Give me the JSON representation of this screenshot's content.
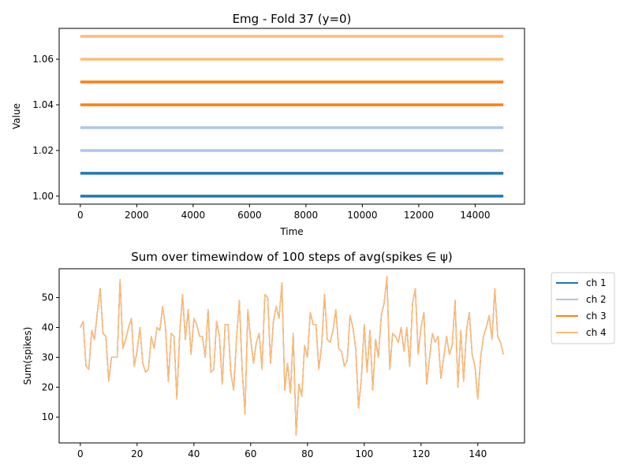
{
  "chart_data": [
    {
      "type": "line",
      "title": "Emg - Fold 37 (y=0)",
      "xlabel": "Time",
      "ylabel": "Value",
      "xlim": [
        -750,
        15750
      ],
      "ylim": [
        0.9965,
        1.0735
      ],
      "xticks": [
        0,
        2000,
        4000,
        6000,
        8000,
        10000,
        12000,
        14000
      ],
      "xtick_labels": [
        "0",
        "2000",
        "4000",
        "6000",
        "8000",
        "10000",
        "12000",
        "14000"
      ],
      "yticks": [
        1.0,
        1.02,
        1.04,
        1.06
      ],
      "ytick_labels": [
        "1.00",
        "1.02",
        "1.04",
        "1.06"
      ],
      "grid": false,
      "series": [
        {
          "x": [
            0,
            15000
          ],
          "values": [
            1.0,
            1.0
          ],
          "color": "#1f77b4"
        },
        {
          "x": [
            0,
            15000
          ],
          "values": [
            1.01,
            1.01
          ],
          "color": "#1f77b4"
        },
        {
          "x": [
            0,
            15000
          ],
          "values": [
            1.02,
            1.02
          ],
          "color": "#aec7e8"
        },
        {
          "x": [
            0,
            15000
          ],
          "values": [
            1.03,
            1.03
          ],
          "color": "#aec7e8"
        },
        {
          "x": [
            0,
            15000
          ],
          "values": [
            1.04,
            1.04
          ],
          "color": "#ff7f0e"
        },
        {
          "x": [
            0,
            15000
          ],
          "values": [
            1.05,
            1.05
          ],
          "color": "#ff7f0e"
        },
        {
          "x": [
            0,
            15000
          ],
          "values": [
            1.06,
            1.06
          ],
          "color": "#ffbb78"
        },
        {
          "x": [
            0,
            15000
          ],
          "values": [
            1.07,
            1.07
          ],
          "color": "#ffbb78"
        }
      ]
    },
    {
      "type": "line",
      "title": "Sum over timewindow of 100 steps of avg(spikes ∈ ψ)",
      "xlabel": "",
      "ylabel": "Sum(spikes)",
      "xlim": [
        -7.45,
        156.45
      ],
      "ylim": [
        1.35,
        59.65
      ],
      "xticks": [
        0,
        20,
        40,
        60,
        80,
        100,
        120,
        140
      ],
      "xtick_labels": [
        "0",
        "20",
        "40",
        "60",
        "80",
        "100",
        "120",
        "140"
      ],
      "yticks": [
        10,
        20,
        30,
        40,
        50
      ],
      "ytick_labels": [
        "10",
        "20",
        "30",
        "40",
        "50"
      ],
      "grid": false,
      "legend_position": "outside upper right",
      "legend": [
        "ch 1",
        "ch 2",
        "ch 3",
        "ch 4"
      ],
      "series": [
        {
          "name": "ch 1",
          "color": "#1f77b4",
          "values": [
            40,
            42,
            27,
            26,
            39,
            36,
            45,
            53,
            38,
            37,
            22,
            30,
            30,
            30,
            56,
            33,
            36,
            40,
            43,
            27,
            32,
            40,
            28,
            25,
            26,
            37,
            33,
            40,
            39,
            47,
            40,
            22,
            38,
            37,
            16,
            38,
            51,
            36,
            46,
            31,
            43,
            41,
            37,
            37,
            30,
            46,
            25,
            26,
            42,
            37,
            21,
            41,
            41,
            25,
            19,
            36,
            49,
            26,
            11,
            46,
            36,
            28,
            35,
            38,
            26,
            51,
            50,
            28,
            42,
            47,
            43,
            55,
            19,
            28,
            18,
            38,
            4,
            21,
            17,
            34,
            30,
            45,
            41,
            41,
            26,
            34,
            51,
            36,
            35,
            39,
            46,
            33,
            32,
            27,
            29,
            44,
            40,
            33,
            13,
            23,
            41,
            25,
            39,
            19,
            36,
            30,
            44,
            48,
            57,
            26,
            38,
            37,
            35,
            40,
            32,
            40,
            27,
            48,
            53,
            31,
            40,
            45,
            21,
            30,
            38,
            35,
            37,
            23,
            30,
            37,
            31,
            34,
            49,
            20,
            39,
            22,
            39,
            45,
            31,
            27,
            16,
            30,
            37,
            40,
            44,
            36,
            53,
            37,
            35,
            31
          ]
        },
        {
          "name": "ch 2",
          "color": "#aec7e8",
          "values": [
            40,
            42,
            27,
            26,
            39,
            36,
            45,
            53,
            38,
            37,
            22,
            30,
            30,
            30,
            56,
            33,
            36,
            40,
            43,
            27,
            32,
            40,
            28,
            25,
            26,
            37,
            33,
            40,
            39,
            47,
            40,
            22,
            38,
            37,
            16,
            38,
            51,
            36,
            46,
            31,
            43,
            41,
            37,
            37,
            30,
            46,
            25,
            26,
            42,
            37,
            21,
            41,
            41,
            25,
            19,
            36,
            49,
            26,
            11,
            46,
            36,
            28,
            35,
            38,
            26,
            51,
            50,
            28,
            42,
            47,
            43,
            55,
            19,
            28,
            18,
            38,
            4,
            21,
            17,
            34,
            30,
            45,
            41,
            41,
            26,
            34,
            51,
            36,
            35,
            39,
            46,
            33,
            32,
            27,
            29,
            44,
            40,
            33,
            13,
            23,
            41,
            25,
            39,
            19,
            36,
            30,
            44,
            48,
            57,
            26,
            38,
            37,
            35,
            40,
            32,
            40,
            27,
            48,
            53,
            31,
            40,
            45,
            21,
            30,
            38,
            35,
            37,
            23,
            30,
            37,
            31,
            34,
            49,
            20,
            39,
            22,
            39,
            45,
            31,
            27,
            16,
            30,
            37,
            40,
            44,
            36,
            53,
            37,
            35,
            31
          ]
        },
        {
          "name": "ch 3",
          "color": "#ff7f0e",
          "values": [
            40,
            42,
            27,
            26,
            39,
            36,
            45,
            53,
            38,
            37,
            22,
            30,
            30,
            30,
            56,
            33,
            36,
            40,
            43,
            27,
            32,
            40,
            28,
            25,
            26,
            37,
            33,
            40,
            39,
            47,
            40,
            22,
            38,
            37,
            16,
            38,
            51,
            36,
            46,
            31,
            43,
            41,
            37,
            37,
            30,
            46,
            25,
            26,
            42,
            37,
            21,
            41,
            41,
            25,
            19,
            36,
            49,
            26,
            11,
            46,
            36,
            28,
            35,
            38,
            26,
            51,
            50,
            28,
            42,
            47,
            43,
            55,
            19,
            28,
            18,
            38,
            4,
            21,
            17,
            34,
            30,
            45,
            41,
            41,
            26,
            34,
            51,
            36,
            35,
            39,
            46,
            33,
            32,
            27,
            29,
            44,
            40,
            33,
            13,
            23,
            41,
            25,
            39,
            19,
            36,
            30,
            44,
            48,
            57,
            26,
            38,
            37,
            35,
            40,
            32,
            40,
            27,
            48,
            53,
            31,
            40,
            45,
            21,
            30,
            38,
            35,
            37,
            23,
            30,
            37,
            31,
            34,
            49,
            20,
            39,
            22,
            39,
            45,
            31,
            27,
            16,
            30,
            37,
            40,
            44,
            36,
            53,
            37,
            35,
            31
          ]
        },
        {
          "name": "ch 4",
          "color": "#ffbb78",
          "values": [
            40,
            42,
            27,
            26,
            39,
            36,
            45,
            53,
            38,
            37,
            22,
            30,
            30,
            30,
            56,
            33,
            36,
            40,
            43,
            27,
            32,
            40,
            28,
            25,
            26,
            37,
            33,
            40,
            39,
            47,
            40,
            22,
            38,
            37,
            16,
            38,
            51,
            36,
            46,
            31,
            43,
            41,
            37,
            37,
            30,
            46,
            25,
            26,
            42,
            37,
            21,
            41,
            41,
            25,
            19,
            36,
            49,
            26,
            11,
            46,
            36,
            28,
            35,
            38,
            26,
            51,
            50,
            28,
            42,
            47,
            43,
            55,
            19,
            28,
            18,
            38,
            4,
            21,
            17,
            34,
            30,
            45,
            41,
            41,
            26,
            34,
            51,
            36,
            35,
            39,
            46,
            33,
            32,
            27,
            29,
            44,
            40,
            33,
            13,
            23,
            41,
            25,
            39,
            19,
            36,
            30,
            44,
            48,
            57,
            26,
            38,
            37,
            35,
            40,
            32,
            40,
            27,
            48,
            53,
            31,
            40,
            45,
            21,
            30,
            38,
            35,
            37,
            23,
            30,
            37,
            31,
            34,
            49,
            20,
            39,
            22,
            39,
            45,
            31,
            27,
            16,
            30,
            37,
            40,
            44,
            36,
            53,
            37,
            35,
            31
          ]
        }
      ]
    }
  ]
}
